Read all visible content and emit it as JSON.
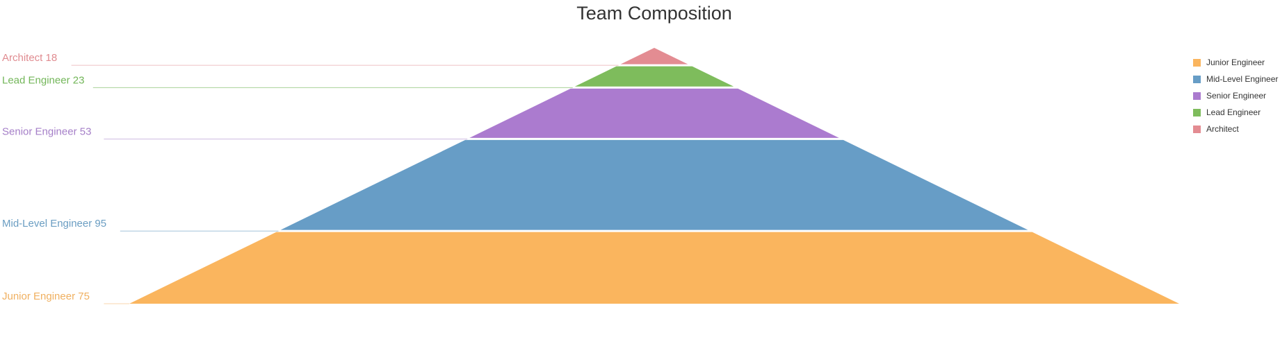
{
  "chart_data": {
    "type": "pyramid",
    "title": "Team Composition",
    "tiers": [
      {
        "name": "Junior Engineer",
        "value": 75,
        "label": "Junior Engineer 75",
        "color": "#fab55e",
        "label_color": "#f0b060"
      },
      {
        "name": "Mid-Level Engineer",
        "value": 95,
        "label": "Mid-Level Engineer 95",
        "color": "#679dc6",
        "label_color": "#6a9dc2"
      },
      {
        "name": "Senior Engineer",
        "value": 53,
        "label": "Senior Engineer 53",
        "color": "#ab7bcf",
        "label_color": "#a57fc8"
      },
      {
        "name": "Lead Engineer",
        "value": 23,
        "label": "Lead Engineer 23",
        "color": "#7ebc5c",
        "label_color": "#72b658"
      },
      {
        "name": "Architect",
        "value": 18,
        "label": "Architect 18",
        "color": "#e38c92",
        "label_color": "#e08b90"
      }
    ],
    "legend": {
      "position": "top-right",
      "items": [
        {
          "label": "Junior Engineer",
          "color": "#fab55e"
        },
        {
          "label": "Mid-Level Engineer",
          "color": "#679dc6"
        },
        {
          "label": "Senior Engineer",
          "color": "#ab7bcf"
        },
        {
          "label": "Lead Engineer",
          "color": "#7ebc5c"
        },
        {
          "label": "Architect",
          "color": "#e38c92"
        }
      ]
    }
  }
}
